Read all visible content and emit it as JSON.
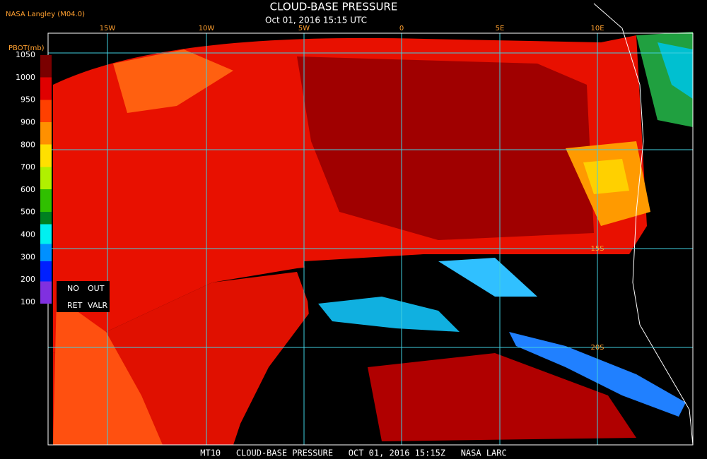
{
  "header": {
    "credit": "NASA Langley (M04.0)",
    "title": "CLOUD-BASE PRESSURE",
    "subtitle": "Oct 01, 2016 15:15 UTC"
  },
  "legend": {
    "title": "PBOT(mb)",
    "labels": [
      "1050",
      "1000",
      "950",
      "900",
      "800",
      "700",
      "600",
      "500",
      "400",
      "300",
      "200",
      "100"
    ],
    "notes": [
      "NO",
      "OUT",
      "RET",
      "VALR"
    ]
  },
  "grid": {
    "lon_labels": [
      "15W",
      "10W",
      "5W",
      "0",
      "5E",
      "10E"
    ],
    "lat_labels": [
      "15S",
      "20S"
    ]
  },
  "footer": "MT10   CLOUD-BASE PRESSURE   OCT 01, 2016 15:15Z   NASA LARC"
}
